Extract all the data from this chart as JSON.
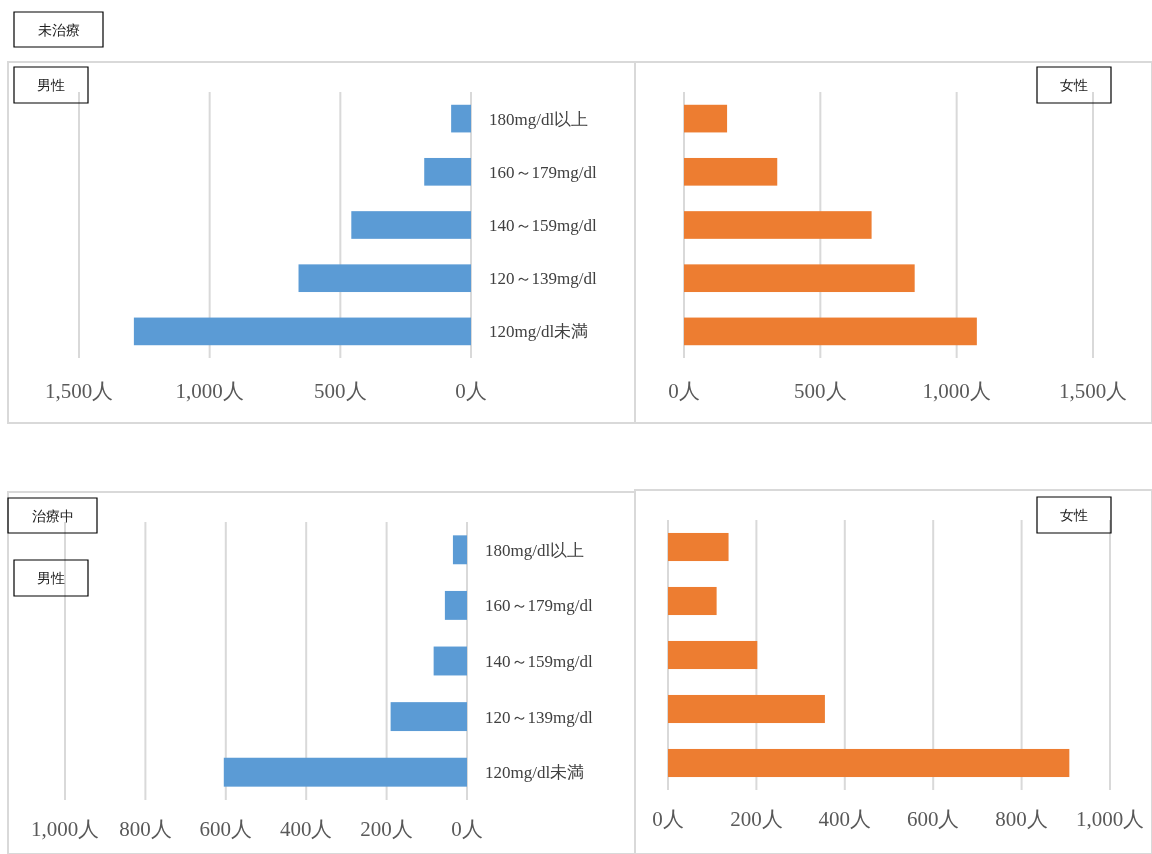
{
  "chart_data": [
    {
      "type": "bar",
      "orientation": "horizontal",
      "title": "未治療",
      "subtitle": "男性",
      "categories": [
        "180mg/dl以上",
        "160～179mg/dl",
        "140～159mg/dl",
        "120～139mg/dl",
        "120mg/dl未満"
      ],
      "series": [
        {
          "color": "#5b9bd5",
          "values": [
            76,
            179,
            458,
            660,
            1290
          ]
        }
      ],
      "xlim": [
        1500,
        0
      ],
      "xticks": [
        {
          "value": 1500,
          "label": "1,500人"
        },
        {
          "value": 1000,
          "label": "1,000人"
        },
        {
          "value": 500,
          "label": "500人"
        },
        {
          "value": 0,
          "label": "0人"
        }
      ],
      "grid": "x"
    },
    {
      "type": "bar",
      "orientation": "horizontal",
      "subtitle": "女性",
      "categories": [
        null,
        null,
        null,
        null,
        null
      ],
      "series": [
        {
          "color": "#ed7d31",
          "values": [
            158,
            342,
            688,
            846,
            1074
          ]
        }
      ],
      "xlim": [
        0,
        1500
      ],
      "xticks": [
        {
          "value": 0,
          "label": "0人"
        },
        {
          "value": 500,
          "label": "500人"
        },
        {
          "value": 1000,
          "label": "1,000人"
        },
        {
          "value": 1500,
          "label": "1,500人"
        }
      ],
      "grid": "x"
    },
    {
      "type": "bar",
      "orientation": "horizontal",
      "title": "治療中",
      "subtitle": "男性",
      "categories": [
        "180mg/dl以上",
        "160～179mg/dl",
        "140～159mg/dl",
        "120～139mg/dl",
        "120mg/dl未満"
      ],
      "series": [
        {
          "color": "#5b9bd5",
          "values": [
            35,
            55,
            83,
            190,
            605
          ]
        }
      ],
      "xlim": [
        1000,
        0
      ],
      "xticks": [
        {
          "value": 1000,
          "label": "1,000人"
        },
        {
          "value": 800,
          "label": "800人"
        },
        {
          "value": 600,
          "label": "600人"
        },
        {
          "value": 400,
          "label": "400人"
        },
        {
          "value": 200,
          "label": "200人"
        },
        {
          "value": 0,
          "label": "0人"
        }
      ],
      "grid": "x"
    },
    {
      "type": "bar",
      "orientation": "horizontal",
      "subtitle": "女性",
      "categories": [
        null,
        null,
        null,
        null,
        null
      ],
      "series": [
        {
          "color": "#ed7d31",
          "values": [
            137,
            110,
            202,
            355,
            908
          ]
        }
      ],
      "xlim": [
        0,
        1000
      ],
      "xticks": [
        {
          "value": 0,
          "label": "0人"
        },
        {
          "value": 200,
          "label": "200人"
        },
        {
          "value": 400,
          "label": "400人"
        },
        {
          "value": 600,
          "label": "600人"
        },
        {
          "value": 800,
          "label": "800人"
        },
        {
          "value": 1000,
          "label": "1,000人"
        }
      ],
      "grid": "x"
    }
  ]
}
